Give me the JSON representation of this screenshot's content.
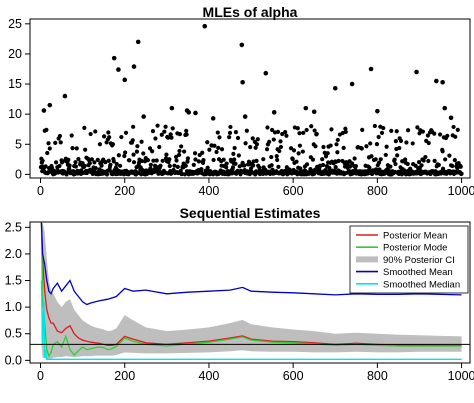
{
  "chart_data": [
    {
      "type": "scatter",
      "title": "MLEs of alpha",
      "xlabel": "",
      "ylabel": "",
      "xlim": [
        -25,
        1020
      ],
      "ylim": [
        -0.6,
        25.8
      ],
      "xticks": [
        0,
        200,
        400,
        600,
        800,
        1000
      ],
      "yticks": [
        0,
        5,
        10,
        15,
        20,
        25
      ],
      "xtick_labels": [
        "0",
        "200",
        "400",
        "600",
        "800",
        "1000"
      ],
      "ytick_labels": [
        "0",
        "5",
        "10",
        "15",
        "20",
        "25"
      ],
      "point_color": "#000000",
      "highlighted_points": [
        {
          "x": 8,
          "y": 10.6
        },
        {
          "x": 22,
          "y": 11.5
        },
        {
          "x": 58,
          "y": 13.0
        },
        {
          "x": 175,
          "y": 19.3
        },
        {
          "x": 185,
          "y": 17.4
        },
        {
          "x": 200,
          "y": 15.7
        },
        {
          "x": 222,
          "y": 17.9
        },
        {
          "x": 232,
          "y": 22.0
        },
        {
          "x": 245,
          "y": 9.6
        },
        {
          "x": 312,
          "y": 11.0
        },
        {
          "x": 348,
          "y": 10.6
        },
        {
          "x": 352,
          "y": 10.3
        },
        {
          "x": 368,
          "y": 10.2
        },
        {
          "x": 390,
          "y": 24.6
        },
        {
          "x": 410,
          "y": 9.3
        },
        {
          "x": 478,
          "y": 21.5
        },
        {
          "x": 480,
          "y": 15.3
        },
        {
          "x": 486,
          "y": 9.6
        },
        {
          "x": 535,
          "y": 16.8
        },
        {
          "x": 555,
          "y": 10.3
        },
        {
          "x": 630,
          "y": 11.0
        },
        {
          "x": 650,
          "y": 10.4
        },
        {
          "x": 700,
          "y": 14.3
        },
        {
          "x": 740,
          "y": 15.0
        },
        {
          "x": 785,
          "y": 17.5
        },
        {
          "x": 800,
          "y": 10.5
        },
        {
          "x": 893,
          "y": 17.0
        },
        {
          "x": 940,
          "y": 15.5
        },
        {
          "x": 955,
          "y": 15.3
        },
        {
          "x": 960,
          "y": 11.0
        },
        {
          "x": 975,
          "y": 9.4
        }
      ],
      "bulk_points_note": "",
      "bulk_points": {
        "n": 1000,
        "typical_range": [
          0,
          8
        ]
      }
    },
    {
      "type": "line",
      "title": "Sequential Estimates",
      "xlabel": "",
      "ylabel": "",
      "xlim": [
        -25,
        1020
      ],
      "ylim": [
        -0.05,
        2.6
      ],
      "xticks": [
        0,
        200,
        400,
        600,
        800,
        1000
      ],
      "yticks": [
        0.0,
        0.5,
        1.0,
        1.5,
        2.0,
        2.5
      ],
      "xtick_labels": [
        "0",
        "200",
        "400",
        "600",
        "800",
        "1000"
      ],
      "ytick_labels": [
        "0.0",
        "0.5",
        "1.0",
        "1.5",
        "2.0",
        "2.5"
      ],
      "reference_line": {
        "y": 0.3,
        "color": "#000000"
      },
      "legend_position": "top-right",
      "series": [
        {
          "name": "Posterior Mean",
          "color": "#e41a1c",
          "x": [
            2,
            5,
            10,
            15,
            20,
            25,
            30,
            40,
            50,
            60,
            70,
            80,
            90,
            100,
            110,
            120,
            130,
            140,
            150,
            160,
            170,
            180,
            200,
            220,
            250,
            300,
            350,
            400,
            450,
            480,
            500,
            550,
            600,
            650,
            700,
            750,
            800,
            850,
            900,
            950,
            1000
          ],
          "y": [
            2.6,
            1.9,
            1.3,
            0.95,
            0.8,
            0.7,
            0.7,
            0.55,
            0.52,
            0.6,
            0.65,
            0.5,
            0.42,
            0.38,
            0.36,
            0.34,
            0.33,
            0.32,
            0.3,
            0.28,
            0.28,
            0.3,
            0.45,
            0.4,
            0.33,
            0.3,
            0.33,
            0.36,
            0.42,
            0.46,
            0.4,
            0.36,
            0.35,
            0.33,
            0.3,
            0.32,
            0.3,
            0.29,
            0.29,
            0.28,
            0.28
          ]
        },
        {
          "name": "Posterior Mode",
          "color": "#33cc33",
          "x": [
            2,
            5,
            10,
            15,
            20,
            25,
            30,
            40,
            50,
            60,
            70,
            80,
            90,
            100,
            110,
            120,
            130,
            140,
            150,
            160,
            170,
            180,
            200,
            220,
            250,
            300,
            350,
            400,
            450,
            480,
            500,
            550,
            600,
            650,
            700,
            750,
            800,
            850,
            900,
            950,
            1000
          ],
          "y": [
            2.6,
            1.2,
            0.7,
            0.2,
            0.08,
            0.15,
            0.3,
            0.35,
            0.25,
            0.45,
            0.2,
            0.1,
            0.18,
            0.25,
            0.2,
            0.22,
            0.24,
            0.25,
            0.24,
            0.2,
            0.22,
            0.26,
            0.42,
            0.36,
            0.3,
            0.27,
            0.31,
            0.34,
            0.4,
            0.44,
            0.38,
            0.34,
            0.33,
            0.31,
            0.28,
            0.3,
            0.28,
            0.27,
            0.27,
            0.27,
            0.27
          ]
        },
        {
          "name": "90% Posterior CI",
          "color": "#bebebe",
          "x": [
            2,
            5,
            10,
            15,
            20,
            25,
            30,
            40,
            50,
            60,
            70,
            80,
            90,
            100,
            110,
            120,
            130,
            140,
            150,
            160,
            170,
            180,
            200,
            220,
            250,
            300,
            350,
            400,
            450,
            480,
            500,
            550,
            600,
            650,
            700,
            750,
            800,
            850,
            900,
            950,
            1000
          ],
          "lower": [
            0.3,
            0.05,
            0.05,
            0.02,
            0.02,
            0.03,
            0.05,
            0.06,
            0.06,
            0.08,
            0.07,
            0.06,
            0.07,
            0.08,
            0.08,
            0.08,
            0.09,
            0.09,
            0.09,
            0.09,
            0.09,
            0.1,
            0.15,
            0.14,
            0.13,
            0.13,
            0.14,
            0.15,
            0.17,
            0.19,
            0.17,
            0.16,
            0.16,
            0.15,
            0.15,
            0.16,
            0.15,
            0.15,
            0.16,
            0.16,
            0.16
          ],
          "upper": [
            2.6,
            2.6,
            2.4,
            1.9,
            1.5,
            1.3,
            1.25,
            1.1,
            1.0,
            1.1,
            1.15,
            0.95,
            0.85,
            0.75,
            0.7,
            0.65,
            0.62,
            0.6,
            0.58,
            0.55,
            0.56,
            0.6,
            0.85,
            0.75,
            0.62,
            0.55,
            0.58,
            0.62,
            0.7,
            0.76,
            0.68,
            0.62,
            0.58,
            0.55,
            0.5,
            0.52,
            0.5,
            0.48,
            0.47,
            0.46,
            0.45
          ]
        },
        {
          "name": "Smoothed Mean",
          "color": "#0000cc",
          "x": [
            2,
            5,
            10,
            15,
            20,
            25,
            30,
            40,
            50,
            60,
            70,
            80,
            90,
            100,
            110,
            120,
            140,
            160,
            180,
            200,
            220,
            250,
            300,
            350,
            400,
            450,
            480,
            500,
            550,
            600,
            650,
            700,
            750,
            800,
            850,
            900,
            950,
            1000
          ],
          "y": [
            2.6,
            2.0,
            1.8,
            1.5,
            1.3,
            1.25,
            1.35,
            1.45,
            1.3,
            1.4,
            1.5,
            1.3,
            1.2,
            1.1,
            1.05,
            1.08,
            1.12,
            1.15,
            1.2,
            1.35,
            1.3,
            1.32,
            1.25,
            1.28,
            1.3,
            1.32,
            1.37,
            1.3,
            1.28,
            1.27,
            1.25,
            1.23,
            1.25,
            1.24,
            1.24,
            1.25,
            1.24,
            1.23
          ]
        },
        {
          "name": "Smoothed Median",
          "color": "#00e5e5",
          "x": [
            2,
            5,
            8,
            10,
            12,
            15,
            20,
            30,
            50,
            100,
            200,
            400,
            600,
            800,
            1000
          ],
          "y": [
            1.5,
            0.3,
            1.1,
            0.05,
            0.2,
            0.02,
            0.02,
            0.02,
            0.02,
            0.02,
            0.02,
            0.02,
            0.02,
            0.02,
            0.02
          ]
        }
      ]
    }
  ]
}
